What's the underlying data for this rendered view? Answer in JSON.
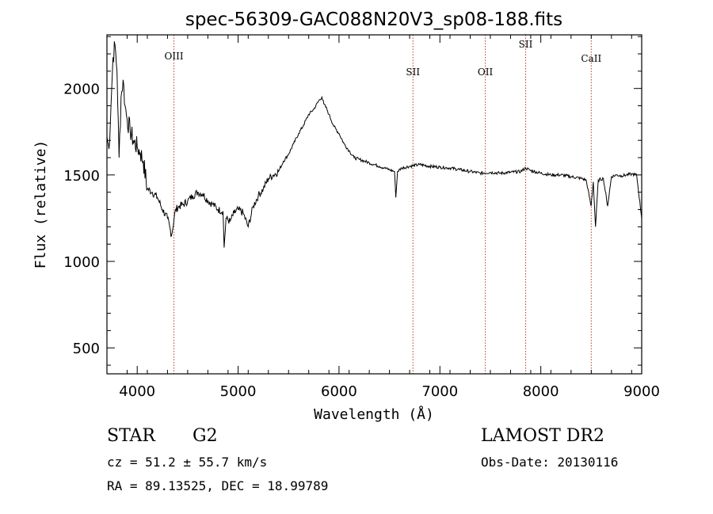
{
  "chart_data": {
    "type": "line",
    "title": "spec-56309-GAC088N20V3_sp08-188.fits",
    "xlabel": "Wavelength (Å)",
    "ylabel": "Flux (relative)",
    "xlim": [
      3700,
      9000
    ],
    "ylim": [
      350,
      2310
    ],
    "xticks": [
      4000,
      5000,
      6000,
      7000,
      8000,
      9000
    ],
    "yticks": [
      500,
      1000,
      1500,
      2000
    ],
    "grid": false,
    "series": [
      {
        "x": [
          3700,
          3720,
          3740,
          3760,
          3780,
          3800,
          3820,
          3840,
          3860,
          3880,
          3900,
          3930,
          3960,
          4000,
          4030,
          4060,
          4100,
          4150,
          4200,
          4250,
          4300,
          4340,
          4380,
          4420,
          4460,
          4500,
          4550,
          4600,
          4650,
          4700,
          4750,
          4800,
          4850,
          4861,
          4880,
          4920,
          4960,
          5000,
          5050,
          5100,
          5150,
          5200,
          5250,
          5300,
          5350,
          5400,
          5450,
          5500,
          5550,
          5600,
          5650,
          5700,
          5750,
          5800,
          5830,
          5850,
          5880,
          5900,
          5950,
          6000,
          6050,
          6100,
          6150,
          6200,
          6250,
          6300,
          6350,
          6400,
          6450,
          6500,
          6550,
          6563,
          6580,
          6620,
          6700,
          6800,
          6900,
          7000,
          7100,
          7200,
          7300,
          7400,
          7500,
          7600,
          7700,
          7800,
          7850,
          7900,
          8000,
          8100,
          8200,
          8300,
          8400,
          8450,
          8498,
          8520,
          8542,
          8570,
          8620,
          8662,
          8700,
          8750,
          8800,
          8850,
          8900,
          8950,
          9000
        ],
        "y": [
          1720,
          1650,
          1900,
          2180,
          2250,
          2100,
          1600,
          1950,
          2050,
          1900,
          1820,
          1760,
          1700,
          1660,
          1630,
          1580,
          1420,
          1400,
          1370,
          1300,
          1250,
          1150,
          1300,
          1320,
          1330,
          1350,
          1380,
          1400,
          1390,
          1350,
          1330,
          1300,
          1290,
          1080,
          1250,
          1230,
          1280,
          1300,
          1280,
          1200,
          1320,
          1380,
          1420,
          1480,
          1500,
          1520,
          1580,
          1620,
          1680,
          1740,
          1790,
          1850,
          1880,
          1930,
          1950,
          1910,
          1880,
          1850,
          1780,
          1740,
          1680,
          1640,
          1600,
          1590,
          1580,
          1570,
          1560,
          1550,
          1540,
          1530,
          1520,
          1370,
          1520,
          1540,
          1550,
          1560,
          1550,
          1545,
          1540,
          1530,
          1520,
          1510,
          1515,
          1510,
          1515,
          1520,
          1540,
          1525,
          1510,
          1500,
          1500,
          1490,
          1480,
          1470,
          1320,
          1460,
          1200,
          1470,
          1480,
          1320,
          1490,
          1500,
          1495,
          1500,
          1505,
          1500,
          1250
        ]
      }
    ],
    "lines": [
      {
        "label": "OIII",
        "x": 4364
      },
      {
        "label": "SII",
        "x": 6733
      },
      {
        "label": "OII",
        "x": 7450
      },
      {
        "label": "SII",
        "x": 7850
      },
      {
        "label": "CaII",
        "x": 8500
      }
    ]
  },
  "info": {
    "object": "STAR",
    "subclass": "G2",
    "survey": "LAMOST DR2",
    "cz": "cz = 51.2 ± 55.7 km/s",
    "obs_date": "Obs-Date: 20130116",
    "coords": "RA =  89.13525, DEC =  18.99789"
  },
  "colors": {
    "spectrum": "#000000",
    "line_marker": "#b04030",
    "axis": "#000000"
  }
}
